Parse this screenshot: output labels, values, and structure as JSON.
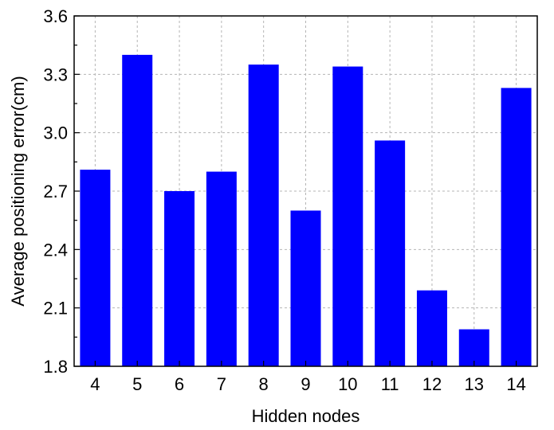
{
  "chart_data": {
    "type": "bar",
    "title": "",
    "xlabel": "Hidden nodes",
    "ylabel": "Average positioning error(cm)",
    "categories": [
      "4",
      "5",
      "6",
      "7",
      "8",
      "9",
      "10",
      "11",
      "12",
      "13",
      "14"
    ],
    "values": [
      2.81,
      3.4,
      2.7,
      2.8,
      3.35,
      2.6,
      3.34,
      2.96,
      2.19,
      1.99,
      3.23
    ],
    "ylim": [
      1.8,
      3.6
    ],
    "yticks": [
      "1.8",
      "2.1",
      "2.4",
      "2.7",
      "3.0",
      "3.3",
      "3.6"
    ],
    "grid": true,
    "bar_color": "#0000ff",
    "legend": "none"
  }
}
